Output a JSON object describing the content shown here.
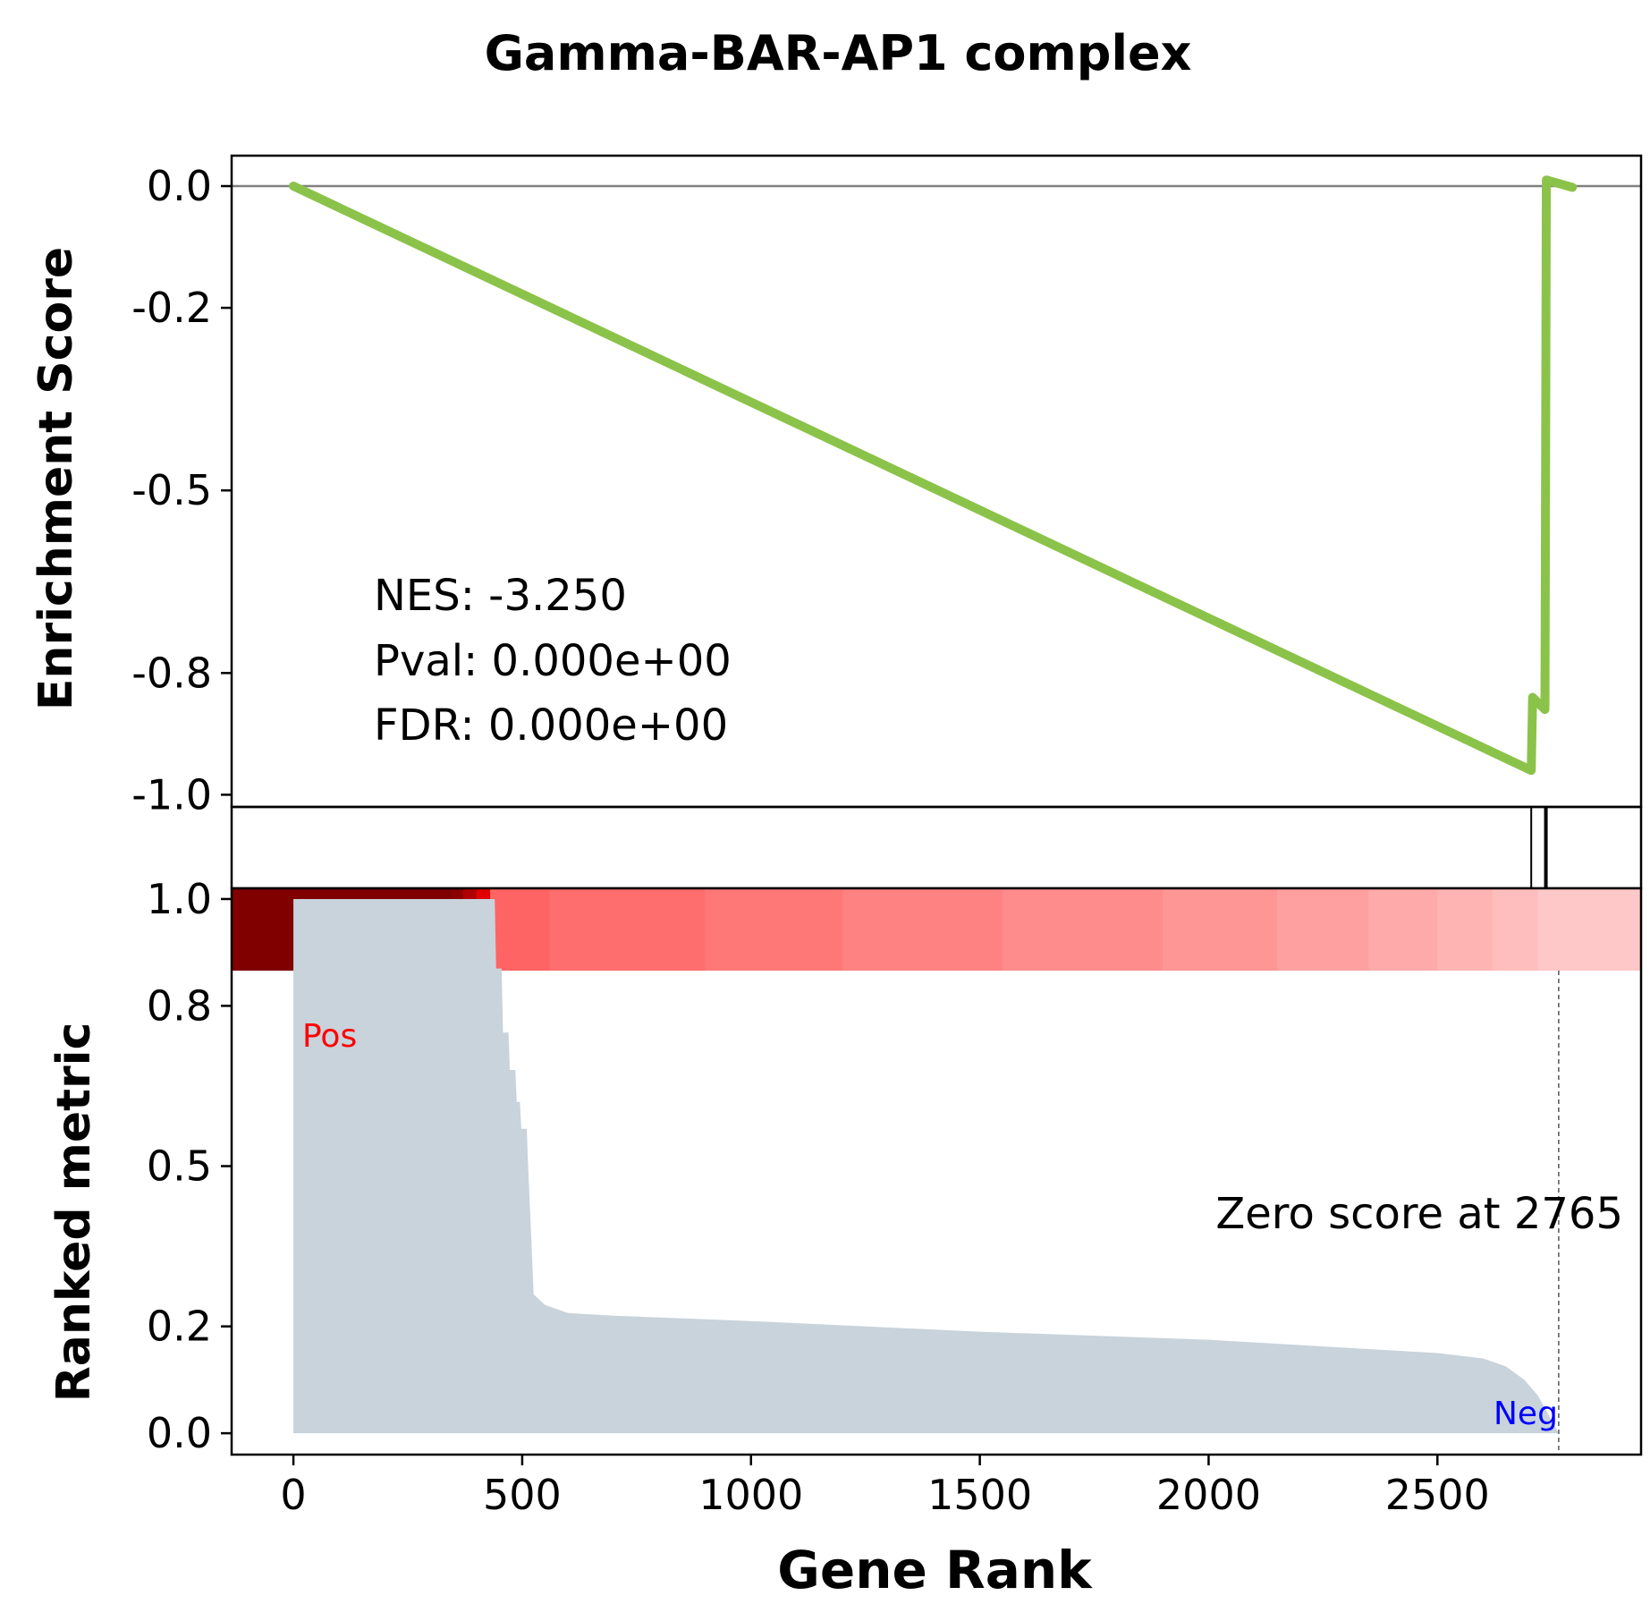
{
  "chart_data": {
    "title": "Gamma-BAR-AP1 complex",
    "type": "line",
    "xlabel": "Gene Rank",
    "x_ticks": [
      0,
      500,
      1000,
      1500,
      2000,
      2500
    ],
    "xlim": [
      -135,
      2945
    ],
    "enrichment": {
      "type": "line",
      "ylabel": "Enrichment Score",
      "ylim": [
        -1.02,
        0.05
      ],
      "y_ticks": [
        0.0,
        -0.2,
        -0.5,
        -0.8,
        -1.0
      ],
      "y_tick_labels": [
        "0.0",
        "-0.2",
        "-0.5",
        "-0.8",
        "-1.0"
      ],
      "line_color": "#8bc34a",
      "zero_line_color": "#808080",
      "x": [
        0,
        2705,
        2708,
        2735,
        2738,
        2795
      ],
      "y": [
        0.0,
        -0.96,
        -0.84,
        -0.86,
        0.01,
        -0.002
      ],
      "stats": {
        "nes": "NES: -3.250",
        "pval": "Pval: 0.000e+00",
        "fdr": "FDR: 0.000e+00"
      }
    },
    "hits": {
      "type": "bar",
      "positions": [
        2705,
        2737
      ]
    },
    "heatmap": {
      "type": "heatmap",
      "colors": [
        "#800000",
        "#8a0000",
        "#b00000",
        "#e00000",
        "#ff6464",
        "#ff6e6e",
        "#ff7878",
        "#ff8282",
        "#ff8c8c",
        "#ff9696",
        "#ffa0a0",
        "#ffaaaa",
        "#ffb4b4",
        "#ffbebe",
        "#ffc8c8"
      ],
      "boundaries": [
        -135,
        345,
        370,
        400,
        430,
        560,
        900,
        1200,
        1550,
        1900,
        2150,
        2350,
        2500,
        2620,
        2720,
        2945
      ]
    },
    "ranked_metric": {
      "type": "area",
      "ylabel": "Ranked metric",
      "ylim": [
        -0.04,
        1.02
      ],
      "y_ticks": [
        0.0,
        0.2,
        0.5,
        0.8,
        1.0
      ],
      "y_tick_labels": [
        "0.0",
        "0.2",
        "0.5",
        "0.8",
        "1.0"
      ],
      "fill_color": "#c8d3dc",
      "x": [
        0,
        440,
        443,
        455,
        458,
        470,
        473,
        485,
        488,
        495,
        498,
        510,
        512,
        525,
        550,
        600,
        700,
        1000,
        1500,
        2000,
        2500,
        2600,
        2650,
        2690,
        2720,
        2765,
        2800
      ],
      "y": [
        1.0,
        1.0,
        0.87,
        0.87,
        0.75,
        0.75,
        0.68,
        0.68,
        0.62,
        0.62,
        0.57,
        0.57,
        0.52,
        0.26,
        0.24,
        0.225,
        0.22,
        0.21,
        0.19,
        0.175,
        0.15,
        0.14,
        0.125,
        0.1,
        0.07,
        0.0,
        0.0
      ],
      "pos_label": "Pos",
      "neg_label": "Neg",
      "pos_color": "#ff0000",
      "neg_color": "#0000ff",
      "zero_rank": 2765,
      "zero_label": "Zero score at 2765"
    }
  }
}
